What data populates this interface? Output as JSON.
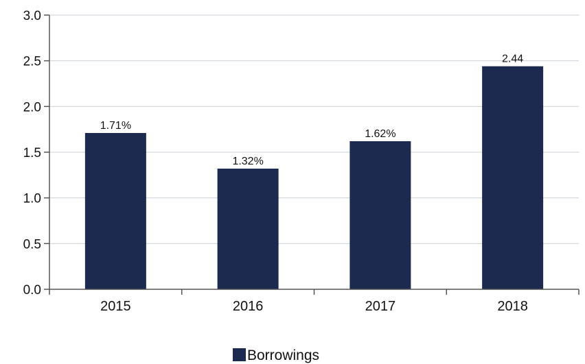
{
  "chart_data": {
    "type": "bar",
    "categories": [
      "2015",
      "2016",
      "2017",
      "2018"
    ],
    "series": [
      {
        "name": "Borrowings",
        "values": [
          1.71,
          1.32,
          1.62,
          2.44
        ]
      }
    ],
    "data_labels": [
      "1.71%",
      "1.32%",
      "1.62%",
      "2.44"
    ],
    "y_ticks": [
      "0.0",
      "0.5",
      "1.0",
      "1.5",
      "2.0",
      "2.5",
      "3.0"
    ],
    "ylim": [
      0,
      3.0
    ],
    "grid": true,
    "legend": {
      "position": "bottom",
      "entries": [
        "Borrowings"
      ]
    },
    "colors": {
      "bar": "#1b2a4e",
      "grid": "#c9d0d8",
      "axis": "#555555"
    }
  }
}
